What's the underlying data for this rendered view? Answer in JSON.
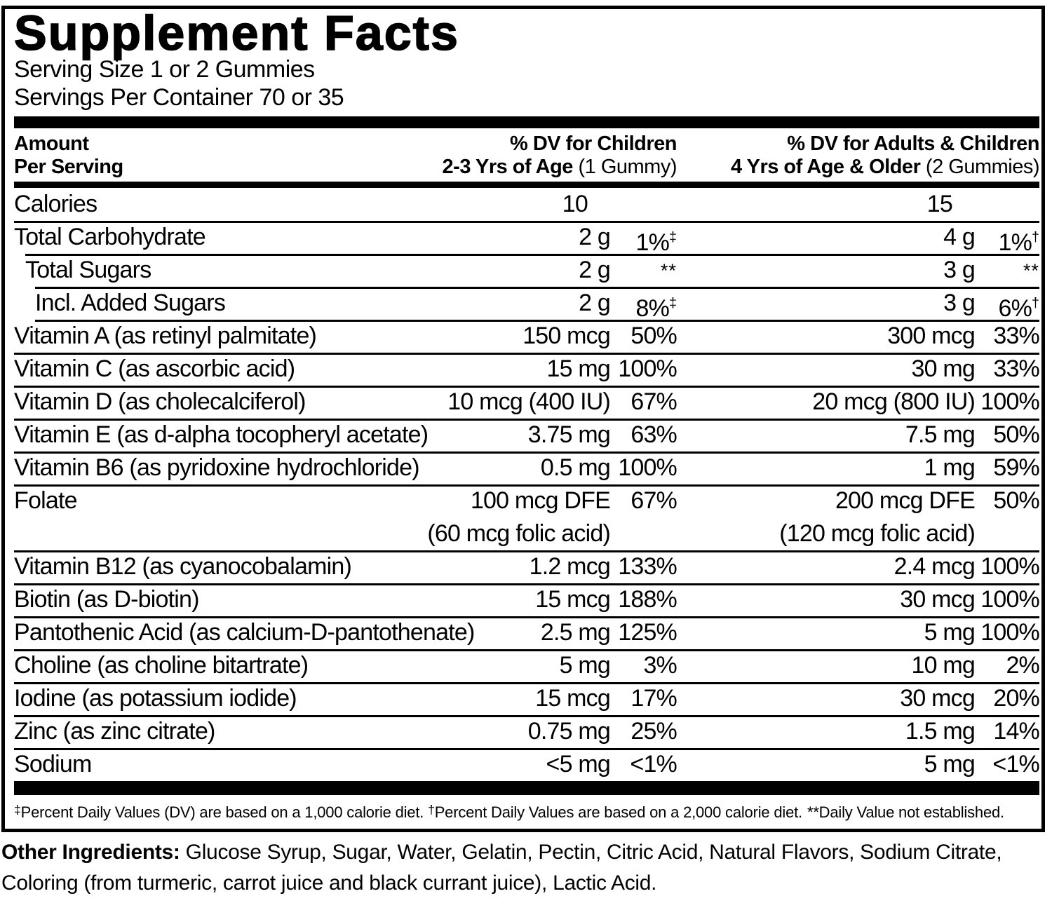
{
  "label": {
    "title": "Supplement Facts",
    "serving_size": "Serving Size 1 or 2 Gummies",
    "servings_per_container": "Servings Per Container 70 or 35"
  },
  "header": {
    "amount_line1": "Amount",
    "amount_line2": "Per Serving",
    "children_line1": "% DV for Children",
    "children_line2_bold": "2-3 Yrs of Age",
    "children_line2_normal": " (1 Gummy)",
    "adults_line1": "% DV for Adults & Children",
    "adults_line2_bold": "4 Yrs of Age & Older",
    "adults_line2_normal": " (2 Gummies)"
  },
  "table": {
    "rows": [
      {
        "name": "Calories",
        "indent": 0,
        "sep": null,
        "c_amt": "10",
        "c_amt2": "",
        "c_dv": "",
        "c_sup": "",
        "a_amt": "15",
        "a_amt2": "",
        "a_dv": "",
        "a_sup": "",
        "tall": false,
        "no_dv": true
      },
      {
        "name": "Total Carbohydrate",
        "indent": 0,
        "sep": "full",
        "c_amt": "2 g",
        "c_amt2": "",
        "c_dv": "1%",
        "c_sup": "‡",
        "a_amt": "4 g",
        "a_amt2": "",
        "a_dv": "1%",
        "a_sup": "†",
        "tall": false,
        "no_dv": false
      },
      {
        "name": "Total Sugars",
        "indent": 1,
        "sep": "ind1",
        "c_amt": "2 g",
        "c_amt2": "",
        "c_dv": "",
        "c_sup": "**",
        "a_amt": "3 g",
        "a_amt2": "",
        "a_dv": "",
        "a_sup": "**",
        "tall": false,
        "no_dv": false
      },
      {
        "name": "Incl. Added Sugars",
        "indent": 2,
        "sep": "ind2",
        "c_amt": "2 g",
        "c_amt2": "",
        "c_dv": "8%",
        "c_sup": "‡",
        "a_amt": "3 g",
        "a_amt2": "",
        "a_dv": "6%",
        "a_sup": "†",
        "tall": false,
        "no_dv": false
      },
      {
        "name": "Vitamin A (as retinyl palmitate)",
        "indent": 0,
        "sep": "ind2",
        "c_amt": "150 mcg",
        "c_amt2": "",
        "c_dv": "50%",
        "c_sup": "",
        "a_amt": "300 mcg",
        "a_amt2": "",
        "a_dv": "33%",
        "a_sup": "",
        "tall": false,
        "no_dv": false
      },
      {
        "name": "Vitamin C (as ascorbic acid)",
        "indent": 0,
        "sep": "full",
        "c_amt": "15 mg",
        "c_amt2": "",
        "c_dv": "100%",
        "c_sup": "",
        "a_amt": "30 mg",
        "a_amt2": "",
        "a_dv": "33%",
        "a_sup": "",
        "tall": false,
        "no_dv": false
      },
      {
        "name": "Vitamin D (as cholecalciferol)",
        "indent": 0,
        "sep": "full",
        "c_amt": "10 mcg (400 IU)",
        "c_amt2": "",
        "c_dv": "67%",
        "c_sup": "",
        "a_amt": "20 mcg (800 IU)",
        "a_amt2": "",
        "a_dv": "100%",
        "a_sup": "",
        "tall": false,
        "no_dv": false
      },
      {
        "name": "Vitamin E (as d-alpha tocopheryl acetate)",
        "indent": 0,
        "sep": "full",
        "c_amt": "3.75 mg",
        "c_amt2": "",
        "c_dv": "63%",
        "c_sup": "",
        "a_amt": "7.5 mg",
        "a_amt2": "",
        "a_dv": "50%",
        "a_sup": "",
        "tall": false,
        "no_dv": false
      },
      {
        "name": "Vitamin B6 (as pyridoxine hydrochloride)",
        "indent": 0,
        "sep": "full",
        "c_amt": "0.5 mg",
        "c_amt2": "",
        "c_dv": "100%",
        "c_sup": "",
        "a_amt": "1 mg",
        "a_amt2": "",
        "a_dv": "59%",
        "a_sup": "",
        "tall": false,
        "no_dv": false
      },
      {
        "name": "Folate",
        "indent": 0,
        "sep": "full",
        "c_amt": "100 mcg DFE",
        "c_amt2": "(60 mcg folic acid)",
        "c_dv": "67%",
        "c_sup": "",
        "a_amt": "200 mcg DFE",
        "a_amt2": "(120 mcg folic acid)",
        "a_dv": "50%",
        "a_sup": "",
        "tall": true,
        "no_dv": false
      },
      {
        "name": "Vitamin B12 (as cyanocobalamin)",
        "indent": 0,
        "sep": "full",
        "c_amt": "1.2 mcg",
        "c_amt2": "",
        "c_dv": "133%",
        "c_sup": "",
        "a_amt": "2.4 mcg",
        "a_amt2": "",
        "a_dv": "100%",
        "a_sup": "",
        "tall": false,
        "no_dv": false
      },
      {
        "name": "Biotin (as D-biotin)",
        "indent": 0,
        "sep": "full",
        "c_amt": "15 mcg",
        "c_amt2": "",
        "c_dv": "188%",
        "c_sup": "",
        "a_amt": "30 mcg",
        "a_amt2": "",
        "a_dv": "100%",
        "a_sup": "",
        "tall": false,
        "no_dv": false
      },
      {
        "name": "Pantothenic Acid (as calcium-D-pantothenate)",
        "indent": 0,
        "sep": "full",
        "c_amt": "2.5 mg",
        "c_amt2": "",
        "c_dv": "125%",
        "c_sup": "",
        "a_amt": "5 mg",
        "a_amt2": "",
        "a_dv": "100%",
        "a_sup": "",
        "tall": false,
        "no_dv": false
      },
      {
        "name": "Choline (as choline bitartrate)",
        "indent": 0,
        "sep": "full",
        "c_amt": "5 mg",
        "c_amt2": "",
        "c_dv": "3%",
        "c_sup": "",
        "a_amt": "10 mg",
        "a_amt2": "",
        "a_dv": "2%",
        "a_sup": "",
        "tall": false,
        "no_dv": false
      },
      {
        "name": "Iodine (as potassium iodide)",
        "indent": 0,
        "sep": "full",
        "c_amt": "15 mcg",
        "c_amt2": "",
        "c_dv": "17%",
        "c_sup": "",
        "a_amt": "30 mcg",
        "a_amt2": "",
        "a_dv": "20%",
        "a_sup": "",
        "tall": false,
        "no_dv": false
      },
      {
        "name": "Zinc (as zinc citrate)",
        "indent": 0,
        "sep": "full",
        "c_amt": "0.75 mg",
        "c_amt2": "",
        "c_dv": "25%",
        "c_sup": "",
        "a_amt": "1.5 mg",
        "a_amt2": "",
        "a_dv": "14%",
        "a_sup": "",
        "tall": false,
        "no_dv": false
      },
      {
        "name": "Sodium",
        "indent": 0,
        "sep": "full",
        "c_amt": "<5 mg",
        "c_amt2": "",
        "c_dv": "<1%",
        "c_sup": "",
        "a_amt": "5 mg",
        "a_amt2": "",
        "a_dv": "<1%",
        "a_sup": "",
        "tall": false,
        "no_dv": false
      }
    ]
  },
  "footnote": {
    "seg1_sup": "‡",
    "seg1_text": "Percent Daily Values (DV) are based on a 1,000 calorie diet. ",
    "seg2_sup": "†",
    "seg2_text": "Percent Daily Values are based on a 2,000 calorie diet.",
    "seg3_text": "**Daily Value not established."
  },
  "other_ingredients": {
    "label": "Other Ingredients:",
    "text": " Glucose Syrup, Sugar, Water, Gelatin, Pectin, Citric Acid, Natural Flavors, Sodium Citrate, Coloring (from turmeric, carrot juice and black currant juice), Lactic Acid."
  },
  "colors": {
    "ink": "#000000",
    "paper": "#ffffff"
  }
}
